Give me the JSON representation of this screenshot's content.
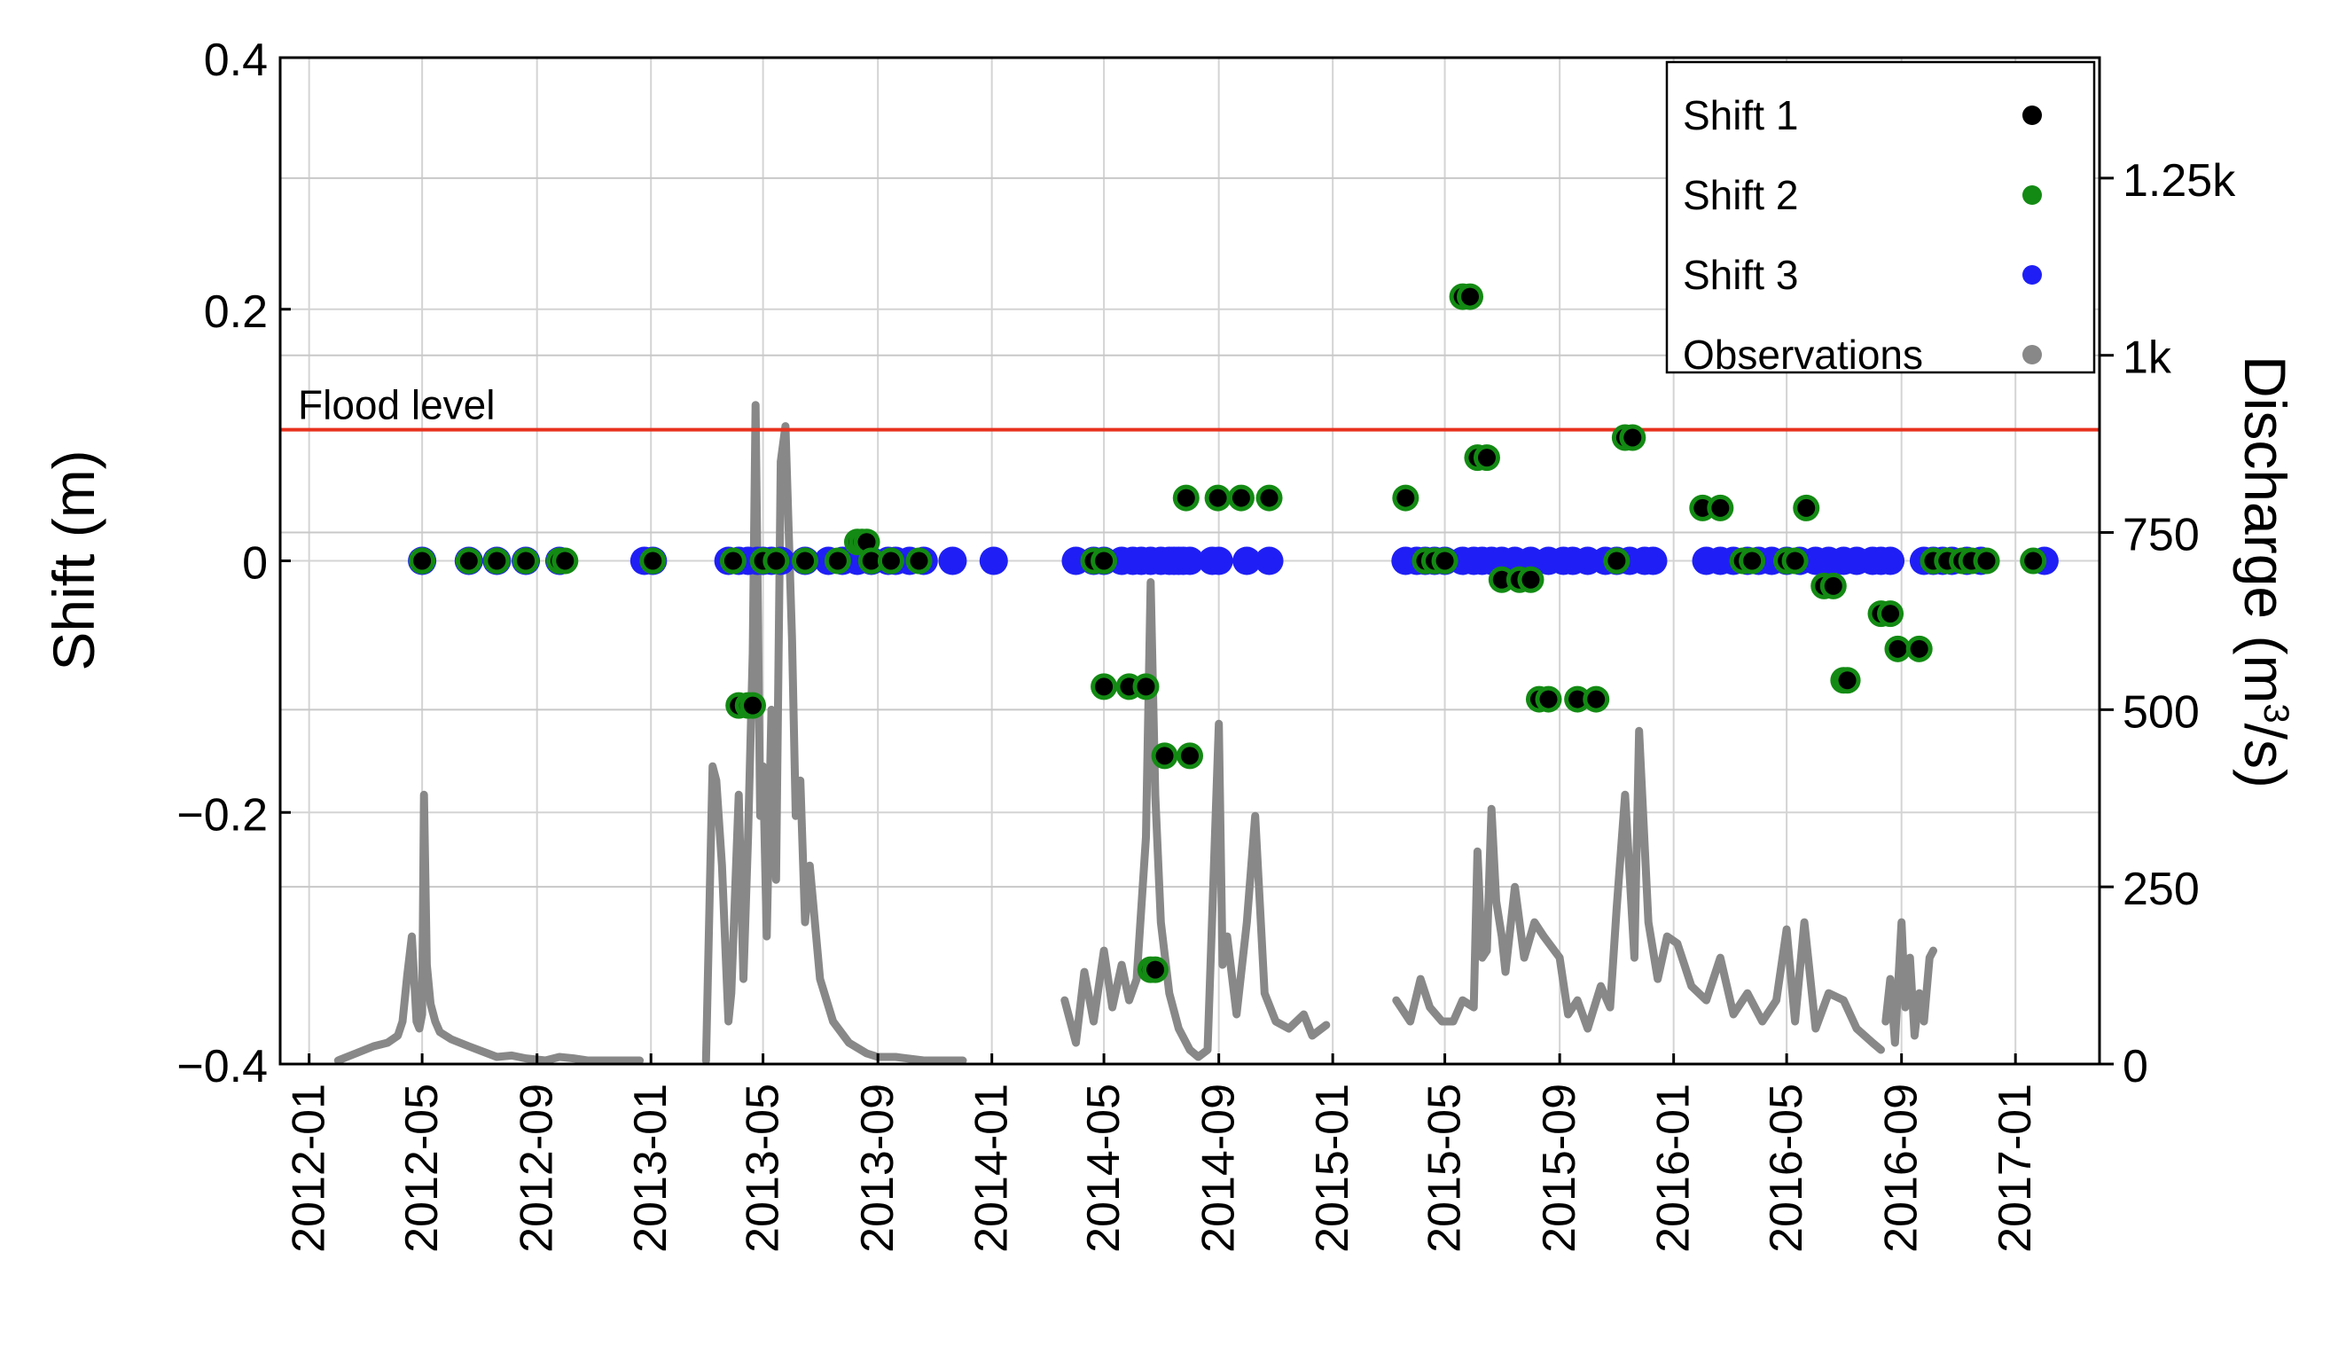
{
  "chart_data": {
    "type": "scatter",
    "x_axis": {
      "type": "date",
      "range": [
        "2011-12-01",
        "2017-04-01"
      ],
      "tick_labels": [
        "2012-01",
        "2012-05",
        "2012-09",
        "2013-01",
        "2013-05",
        "2013-09",
        "2014-01",
        "2014-05",
        "2014-09",
        "2015-01",
        "2015-05",
        "2015-09",
        "2016-01",
        "2016-05",
        "2016-09",
        "2017-01"
      ]
    },
    "y_left": {
      "label": "Shift (m)",
      "range": [
        -0.4,
        0.4
      ],
      "ticks": [
        -0.4,
        -0.2,
        0,
        0.2,
        0.4
      ],
      "tick_labels": [
        "−0.4",
        "−0.2",
        "0",
        "0.2",
        "0.4"
      ]
    },
    "y_right": {
      "label_main": "Discharge (m",
      "label_sup": "3",
      "label_end": "/s)",
      "range": [
        0,
        1420
      ],
      "ticks": [
        0,
        250,
        500,
        750,
        1000,
        1250
      ],
      "tick_labels": [
        "0",
        "250",
        "500",
        "750",
        "1k",
        "1.25k"
      ]
    },
    "grid": true,
    "flood_level": {
      "label": "Flood level",
      "discharge": 895,
      "color": "#e8321e"
    },
    "legend": {
      "position": "top-right",
      "entries": [
        {
          "name": "Shift 1",
          "color": "#000000"
        },
        {
          "name": "Shift 2",
          "color": "#138a13"
        },
        {
          "name": "Shift 3",
          "color": "#1f1ff5"
        },
        {
          "name": "Observations",
          "color": "#888888"
        }
      ]
    },
    "shift3_points": {
      "color": "#1f1ff5",
      "dates": [
        "2012-05-01",
        "2012-06-20",
        "2012-07-20",
        "2012-08-20",
        "2012-09-25",
        "2012-12-25",
        "2013-01-03",
        "2013-03-25",
        "2013-04-05",
        "2013-04-15",
        "2013-04-25",
        "2013-05-01",
        "2013-05-10",
        "2013-05-20",
        "2013-06-15",
        "2013-07-10",
        "2013-07-25",
        "2013-08-10",
        "2013-08-25",
        "2013-09-12",
        "2013-09-20",
        "2013-10-05",
        "2013-10-20",
        "2013-11-20",
        "2014-01-03",
        "2014-04-01",
        "2014-04-20",
        "2014-05-01",
        "2014-05-20",
        "2014-06-01",
        "2014-06-10",
        "2014-06-20",
        "2014-07-01",
        "2014-07-10",
        "2014-07-15",
        "2014-07-20",
        "2014-07-25",
        "2014-08-01",
        "2014-08-25",
        "2014-09-01",
        "2014-10-01",
        "2014-10-25",
        "2015-03-20",
        "2015-04-01",
        "2015-04-10",
        "2015-04-20",
        "2015-05-01",
        "2015-05-20",
        "2015-06-01",
        "2015-06-10",
        "2015-06-20",
        "2015-07-01",
        "2015-07-15",
        "2015-08-01",
        "2015-08-20",
        "2015-09-05",
        "2015-09-15",
        "2015-10-01",
        "2015-10-20",
        "2015-11-01",
        "2015-11-15",
        "2015-12-01",
        "2015-12-10",
        "2016-02-05",
        "2016-02-20",
        "2016-03-05",
        "2016-03-20",
        "2016-04-01",
        "2016-04-15",
        "2016-05-01",
        "2016-05-15",
        "2016-06-01",
        "2016-06-15",
        "2016-07-01",
        "2016-07-15",
        "2016-08-01",
        "2016-08-10",
        "2016-08-20",
        "2016-09-25",
        "2016-10-05",
        "2016-10-15",
        "2016-10-25",
        "2016-11-10",
        "2016-11-25",
        "2017-02-01"
      ],
      "values": [
        0,
        0,
        0,
        0,
        0,
        0,
        0,
        0,
        0,
        0,
        0,
        0,
        0,
        0,
        0,
        0,
        0,
        0,
        0,
        0,
        0,
        0,
        0,
        0,
        0,
        0,
        0,
        0,
        0,
        0,
        0,
        0,
        0,
        0,
        0,
        0,
        0,
        0,
        0,
        0,
        0,
        0,
        0,
        0,
        0,
        0,
        0,
        0,
        0,
        0,
        0,
        0,
        0,
        0,
        0,
        0,
        0,
        0,
        0,
        0,
        0,
        0,
        0,
        0,
        0,
        0,
        0,
        0,
        0,
        0,
        0,
        0,
        0,
        0,
        0,
        0,
        0,
        0,
        0,
        0,
        0,
        0,
        0,
        0,
        0
      ]
    },
    "shift_points": {
      "dates": [
        "2012-05-01",
        "2012-06-20",
        "2012-07-20",
        "2012-08-20",
        "2012-09-25",
        "2012-10-01",
        "2013-01-03",
        "2013-03-30",
        "2013-04-05",
        "2013-04-15",
        "2013-04-20",
        "2013-05-01",
        "2013-05-15",
        "2013-06-15",
        "2013-07-20",
        "2013-08-10",
        "2013-08-15",
        "2013-08-20",
        "2013-08-25",
        "2013-09-15",
        "2013-10-15",
        "2014-04-20",
        "2014-05-01",
        "2014-05-01",
        "2014-05-28",
        "2014-06-15",
        "2014-06-20",
        "2014-06-25",
        "2014-07-05",
        "2014-07-28",
        "2014-08-01",
        "2014-08-31",
        "2014-09-25",
        "2014-10-25",
        "2015-03-20",
        "2015-04-10",
        "2015-04-20",
        "2015-05-01",
        "2015-05-20",
        "2015-05-28",
        "2015-06-05",
        "2015-06-15",
        "2015-07-01",
        "2015-07-20",
        "2015-08-01",
        "2015-08-10",
        "2015-08-20",
        "2015-09-20",
        "2015-10-10",
        "2015-11-01",
        "2015-11-10",
        "2015-11-18",
        "2016-02-01",
        "2016-02-20",
        "2016-03-15",
        "2016-03-25",
        "2016-05-01",
        "2016-05-01",
        "2016-05-10",
        "2016-05-22",
        "2016-06-10",
        "2016-06-20",
        "2016-07-01",
        "2016-07-05",
        "2016-08-10",
        "2016-08-20",
        "2016-08-28",
        "2016-09-20",
        "2016-10-05",
        "2016-10-20",
        "2016-11-05",
        "2016-11-15",
        "2016-12-01",
        "2017-01-20"
      ],
      "values": [
        0,
        0,
        0,
        0,
        0,
        0,
        0,
        0,
        -0.115,
        -0.115,
        -0.115,
        0,
        0,
        0,
        0,
        0.015,
        0.015,
        0.015,
        0,
        0,
        0,
        0,
        0,
        -0.1,
        -0.1,
        -0.1,
        -0.325,
        -0.325,
        -0.155,
        0.05,
        -0.155,
        0.05,
        0.05,
        0.05,
        0.05,
        0,
        0,
        0,
        0.21,
        0.21,
        0.082,
        0.082,
        -0.015,
        -0.015,
        -0.015,
        -0.11,
        -0.11,
        -0.11,
        -0.11,
        0,
        0.098,
        0.098,
        0.042,
        0.042,
        0,
        0,
        0,
        0,
        0,
        0.042,
        -0.02,
        -0.02,
        -0.095,
        -0.095,
        -0.042,
        -0.042,
        -0.07,
        -0.07,
        0,
        0,
        0,
        0,
        0,
        0
      ]
    },
    "observations": {
      "color": "#888888",
      "segments": [
        {
          "dates": [
            "2012-02-01",
            "2012-02-20",
            "2012-03-10",
            "2012-03-25",
            "2012-04-05",
            "2012-04-10",
            "2012-04-15",
            "2012-04-20",
            "2012-04-25",
            "2012-04-28",
            "2012-05-01",
            "2012-05-03",
            "2012-05-06",
            "2012-05-10",
            "2012-05-15",
            "2012-05-20",
            "2012-06-01",
            "2012-06-20",
            "2012-07-10",
            "2012-07-20",
            "2012-08-05",
            "2012-08-20",
            "2012-09-10",
            "2012-09-25",
            "2012-10-10",
            "2012-10-25",
            "2012-11-15",
            "2012-12-01",
            "2012-12-20"
          ],
          "values": [
            5,
            15,
            25,
            30,
            40,
            60,
            125,
            180,
            60,
            50,
            70,
            380,
            140,
            85,
            60,
            45,
            35,
            25,
            15,
            10,
            12,
            8,
            5,
            10,
            8,
            5,
            5,
            5,
            5
          ]
        },
        {
          "dates": [
            "2013-03-01",
            "2013-03-08",
            "2013-03-12",
            "2013-03-18",
            "2013-03-25",
            "2013-03-28",
            "2013-04-05",
            "2013-04-10",
            "2013-04-15",
            "2013-04-20",
            "2013-04-23",
            "2013-04-28",
            "2013-05-01",
            "2013-05-05",
            "2013-05-10",
            "2013-05-15",
            "2013-05-20",
            "2013-05-25",
            "2013-06-01",
            "2013-06-05",
            "2013-06-10",
            "2013-06-15",
            "2013-06-20",
            "2013-07-01",
            "2013-07-15",
            "2013-08-01",
            "2013-08-20",
            "2013-09-01",
            "2013-09-20",
            "2013-10-20",
            "2013-11-15",
            "2013-12-01"
          ],
          "values": [
            5,
            420,
            400,
            280,
            60,
            100,
            380,
            120,
            320,
            580,
            930,
            350,
            420,
            180,
            500,
            260,
            850,
            900,
            600,
            350,
            400,
            200,
            280,
            120,
            60,
            30,
            15,
            10,
            10,
            5,
            5,
            5
          ]
        },
        {
          "dates": [
            "2014-03-20",
            "2014-04-01",
            "2014-04-10",
            "2014-04-20",
            "2014-05-01",
            "2014-05-10",
            "2014-05-20",
            "2014-05-28",
            "2014-06-05",
            "2014-06-15",
            "2014-06-20",
            "2014-06-25",
            "2014-07-01",
            "2014-07-10",
            "2014-07-20",
            "2014-08-01",
            "2014-08-10",
            "2014-08-20",
            "2014-09-01",
            "2014-09-05",
            "2014-09-10",
            "2014-09-20",
            "2014-10-01",
            "2014-10-10",
            "2014-10-20",
            "2014-11-01",
            "2014-11-15",
            "2014-12-01",
            "2014-12-10",
            "2014-12-25"
          ],
          "values": [
            90,
            30,
            130,
            60,
            160,
            80,
            140,
            90,
            120,
            320,
            680,
            380,
            200,
            100,
            50,
            20,
            10,
            20,
            480,
            140,
            180,
            70,
            200,
            350,
            100,
            60,
            50,
            70,
            40,
            55
          ]
        },
        {
          "dates": [
            "2015-03-10",
            "2015-03-25",
            "2015-04-05",
            "2015-04-15",
            "2015-04-28",
            "2015-05-10",
            "2015-05-20",
            "2015-06-01",
            "2015-06-05",
            "2015-06-10",
            "2015-06-15",
            "2015-06-20",
            "2015-06-25",
            "2015-07-01",
            "2015-07-05",
            "2015-07-15",
            "2015-07-25",
            "2015-08-05",
            "2015-08-15",
            "2015-09-01",
            "2015-09-10",
            "2015-09-20",
            "2015-10-01",
            "2015-10-15",
            "2015-10-25",
            "2015-11-01",
            "2015-11-10",
            "2015-11-20",
            "2015-11-25",
            "2015-12-05",
            "2015-12-15",
            "2015-12-25",
            "2016-01-05",
            "2016-01-20",
            "2016-02-05",
            "2016-02-20",
            "2016-03-05",
            "2016-03-20",
            "2016-04-05",
            "2016-04-20",
            "2016-05-01",
            "2016-05-10",
            "2016-05-20",
            "2016-06-01",
            "2016-06-15",
            "2016-07-01",
            "2016-07-15",
            "2016-08-01",
            "2016-08-10"
          ],
          "values": [
            90,
            60,
            120,
            80,
            60,
            60,
            90,
            80,
            300,
            150,
            160,
            360,
            230,
            180,
            130,
            250,
            150,
            200,
            180,
            150,
            70,
            90,
            50,
            110,
            80,
            220,
            380,
            150,
            470,
            200,
            120,
            180,
            170,
            110,
            90,
            150,
            70,
            100,
            60,
            90,
            190,
            60,
            200,
            50,
            100,
            90,
            50,
            30,
            20
          ]
        },
        {
          "dates": [
            "2016-08-15",
            "2016-08-20",
            "2016-08-25",
            "2016-09-01",
            "2016-09-05",
            "2016-09-10",
            "2016-09-15",
            "2016-09-20",
            "2016-09-25",
            "2016-10-01",
            "2016-10-05"
          ],
          "values": [
            60,
            120,
            30,
            200,
            80,
            150,
            40,
            100,
            60,
            150,
            160
          ]
        }
      ]
    }
  }
}
